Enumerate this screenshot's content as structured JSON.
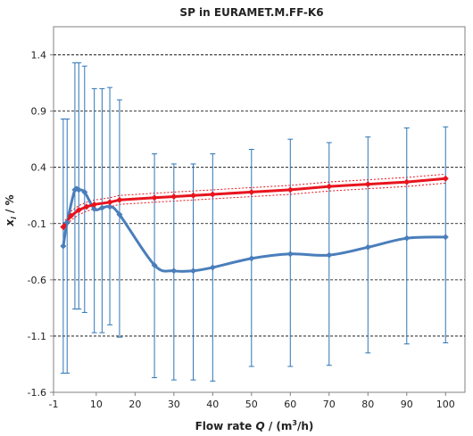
{
  "chart_data": {
    "type": "line",
    "title": "SP in EURAMET.M.FF-K6",
    "xlabel_parts": [
      "Flow rate ",
      "Q",
      " / (m",
      "3",
      "/h)"
    ],
    "ylabel_parts": [
      "x",
      "i",
      " / %"
    ],
    "xlim": [
      -1,
      105
    ],
    "ylim": [
      -1.6,
      1.65
    ],
    "xticks": [
      -1,
      10,
      20,
      30,
      40,
      50,
      60,
      70,
      80,
      90,
      100
    ],
    "yticks": [
      1.4,
      0.9,
      0.4,
      -0.1,
      -0.6,
      -1.1,
      -1.6
    ],
    "grid": "horizontal-dashed",
    "colors": {
      "blue": "#4a7ebb",
      "red": "#e8141e",
      "error_bar": "#2e75b6"
    },
    "series": [
      {
        "style": "blue-smooth-diamonds",
        "x": [
          1.5,
          2.5,
          4.5,
          5.5,
          7,
          9.5,
          11.5,
          13.5,
          16,
          25,
          30,
          35,
          40,
          50,
          60,
          70,
          80,
          90,
          100
        ],
        "y": [
          -0.3,
          -0.09,
          0.2,
          0.2,
          0.18,
          0.03,
          0.04,
          0.05,
          -0.02,
          -0.47,
          -0.52,
          -0.52,
          -0.49,
          -0.41,
          -0.37,
          -0.38,
          -0.31,
          -0.23,
          -0.22
        ],
        "err_high": [
          0.83,
          0.83,
          1.33,
          1.33,
          1.3,
          1.1,
          1.1,
          1.11,
          1.0,
          0.52,
          0.43,
          0.43,
          0.52,
          0.56,
          0.65,
          0.62,
          0.67,
          0.75,
          0.76
        ],
        "err_low": [
          -1.43,
          -1.43,
          -0.86,
          -0.86,
          -0.89,
          -1.07,
          -1.07,
          -1.0,
          -1.11,
          -1.47,
          -1.49,
          -1.49,
          -1.5,
          -1.37,
          -1.37,
          -1.36,
          -1.25,
          -1.17,
          -1.16
        ]
      },
      {
        "style": "red-line-diamonds",
        "x": [
          1.5,
          3.5,
          5.5,
          7.5,
          9.5,
          13.5,
          16,
          25,
          30,
          35,
          40,
          50,
          60,
          70,
          80,
          90,
          100
        ],
        "y": [
          -0.13,
          -0.03,
          0.02,
          0.05,
          0.07,
          0.09,
          0.11,
          0.13,
          0.14,
          0.15,
          0.16,
          0.18,
          0.2,
          0.23,
          0.25,
          0.27,
          0.3
        ]
      },
      {
        "style": "red-dotted-band-upper",
        "x": [
          1.5,
          3.5,
          5.5,
          7.5,
          9.5,
          13.5,
          16,
          25,
          30,
          35,
          40,
          50,
          60,
          70,
          80,
          90,
          100
        ],
        "y": [
          -0.1,
          0.01,
          0.06,
          0.09,
          0.11,
          0.13,
          0.15,
          0.17,
          0.18,
          0.19,
          0.2,
          0.22,
          0.24,
          0.27,
          0.29,
          0.31,
          0.34
        ]
      },
      {
        "style": "red-dotted-band-lower",
        "x": [
          1.5,
          3.5,
          5.5,
          7.5,
          9.5,
          13.5,
          16,
          25,
          30,
          35,
          40,
          50,
          60,
          70,
          80,
          90,
          100
        ],
        "y": [
          -0.16,
          -0.07,
          -0.02,
          0.01,
          0.03,
          0.05,
          0.07,
          0.09,
          0.1,
          0.11,
          0.12,
          0.14,
          0.16,
          0.19,
          0.21,
          0.23,
          0.26
        ]
      }
    ]
  }
}
